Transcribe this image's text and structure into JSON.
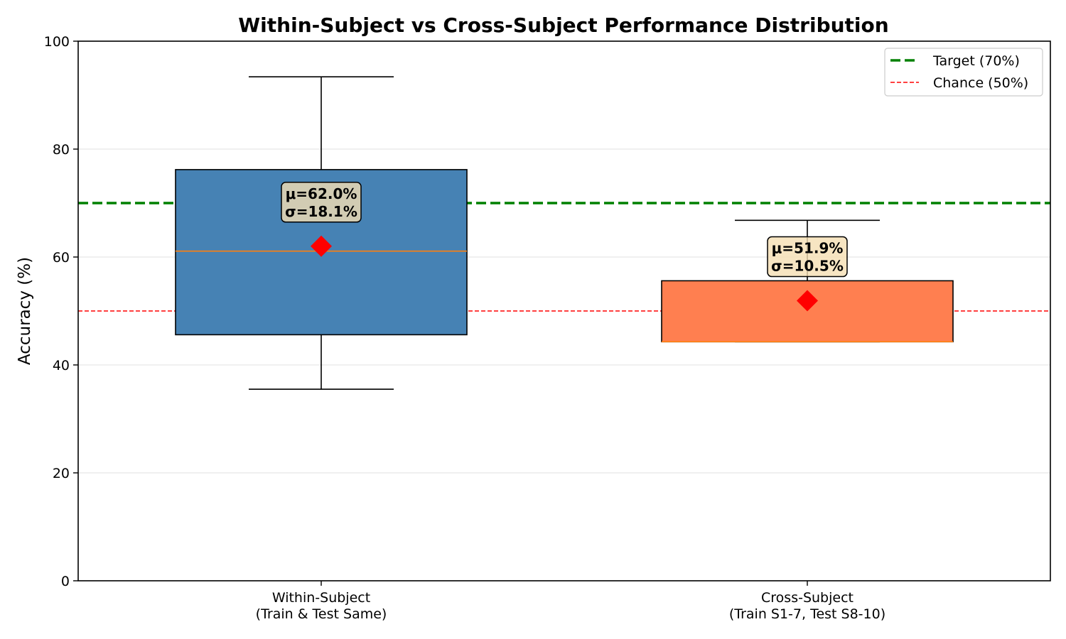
{
  "chart_data": {
    "type": "boxplot",
    "title": "Within-Subject vs Cross-Subject Performance Distribution",
    "ylabel": "Accuracy (%)",
    "ylim": [
      0,
      100
    ],
    "yticks": [
      0,
      20,
      40,
      60,
      80,
      100
    ],
    "grid": "horizontal",
    "legend_position": "top-right",
    "categories": [
      {
        "line1": "Within-Subject",
        "line2": "(Train & Test Same)"
      },
      {
        "line1": "Cross-Subject",
        "line2": "(Train S1-7, Test S8-10)"
      }
    ],
    "boxes": [
      {
        "whisker_low": 35.5,
        "q1": 45.6,
        "median": 61.1,
        "q3": 76.2,
        "whisker_high": 93.4,
        "mean": 62.0,
        "label_mean": "μ=62.0%",
        "label_sd": "σ=18.1%",
        "color": "#4682b4"
      },
      {
        "whisker_low": 44.3,
        "q1": 44.3,
        "median": 44.3,
        "q3": 55.6,
        "whisker_high": 66.8,
        "mean": 51.9,
        "label_mean": "μ=51.9%",
        "label_sd": "σ=10.5%",
        "color": "#ff7f50"
      }
    ],
    "reference_lines": [
      {
        "name": "Target (70%)",
        "value": 70,
        "color": "#008000",
        "style": "dashed-thick"
      },
      {
        "name": "Chance (50%)",
        "value": 50,
        "color": "#ff0000",
        "style": "dashed-thin"
      }
    ],
    "median_color": "#ff7f0e",
    "mean_marker_color": "#ff0000",
    "annotation_box_color": "#f5deb3"
  }
}
